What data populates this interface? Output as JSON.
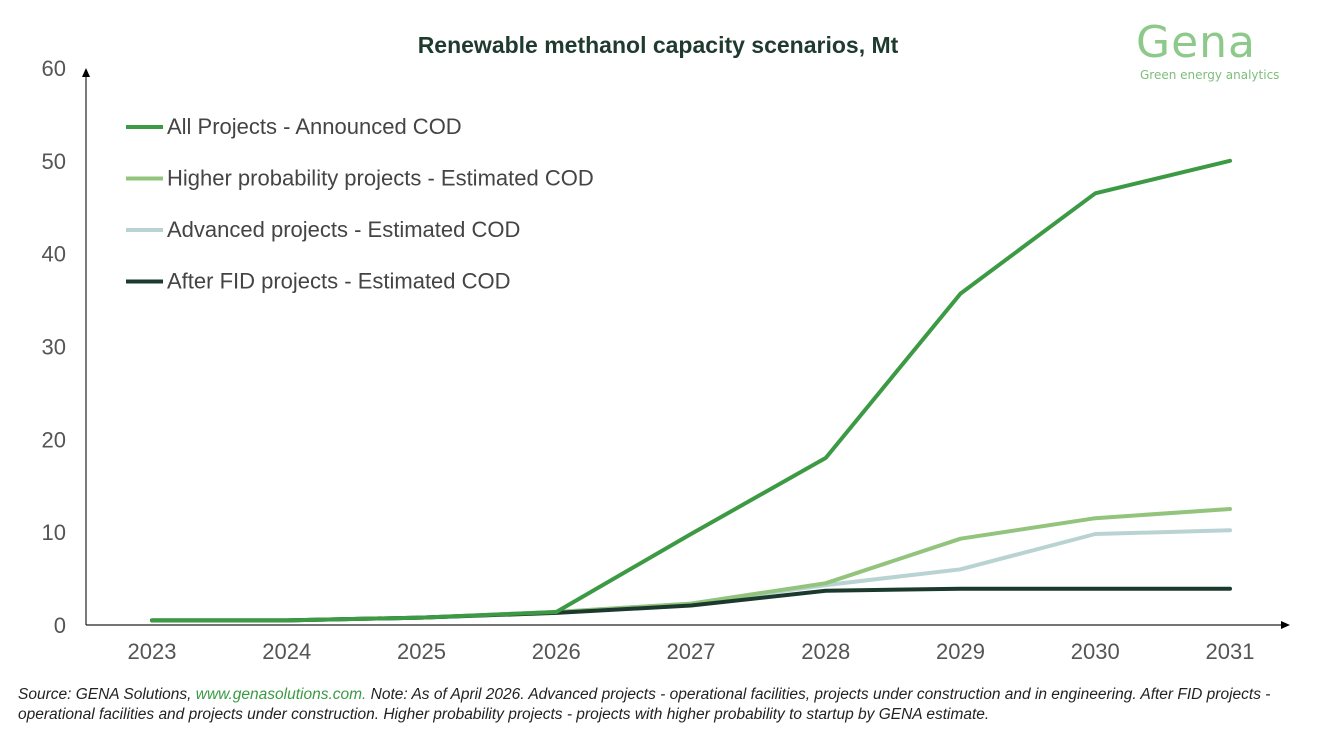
{
  "title": "Renewable methanol capacity scenarios, Mt",
  "logo": {
    "name": "Gena",
    "tagline": "Green energy analytics"
  },
  "footnote": {
    "prefix": "Source: GENA Solutions, ",
    "link": "www.genasolutions.com.",
    "rest": " Note: As of April 2026. Advanced projects - operational facilities, projects under construction and in engineering. After FID projects - operational facilities and projects under construction. Higher probability projects - projects with higher probability to startup by GENA estimate."
  },
  "chart_data": {
    "type": "line",
    "title": "Renewable methanol capacity scenarios, Mt",
    "xlabel": "",
    "ylabel": "",
    "ylim": [
      0,
      60
    ],
    "yticks": [
      0,
      10,
      20,
      30,
      40,
      50,
      60
    ],
    "grid": false,
    "legend_position": "top-left",
    "categories": [
      "2023",
      "2024",
      "2025",
      "2026",
      "2027",
      "2028",
      "2029",
      "2030",
      "2031"
    ],
    "series": [
      {
        "name": "All Projects - Announced COD",
        "color": "#3d9a44",
        "values": [
          0.5,
          0.5,
          0.8,
          1.4,
          9.8,
          18.0,
          35.7,
          46.5,
          50.0
        ]
      },
      {
        "name": "Higher probability projects - Estimated COD",
        "color": "#93c47d",
        "values": [
          0.5,
          0.5,
          0.8,
          1.4,
          2.3,
          4.5,
          9.3,
          11.5,
          12.5
        ]
      },
      {
        "name": "Advanced projects - Estimated COD",
        "color": "#b9d3d2",
        "values": [
          0.5,
          0.5,
          0.8,
          1.4,
          2.3,
          4.3,
          6.0,
          9.8,
          10.2
        ]
      },
      {
        "name": "After FID projects - Estimated COD",
        "color": "#1b3a2d",
        "values": [
          0.5,
          0.5,
          0.8,
          1.3,
          2.1,
          3.7,
          3.9,
          3.9,
          3.9
        ]
      }
    ]
  }
}
